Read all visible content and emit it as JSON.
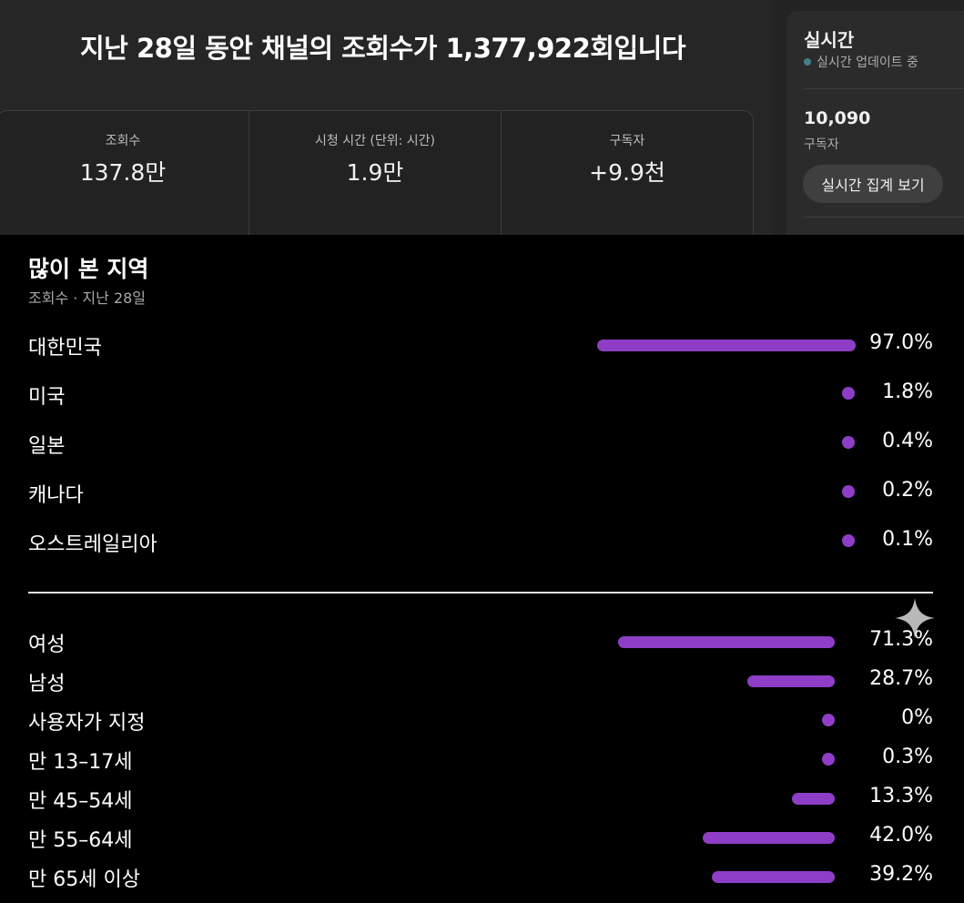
{
  "overview": {
    "headline": "지난 28일 동안 채널의 조회수가 1,377,922회입니다",
    "metrics": [
      {
        "label": "조회수",
        "value": "137.8만"
      },
      {
        "label": "시청 시간 (단위: 시간)",
        "value": "1.9만"
      },
      {
        "label": "구독자",
        "value": "+9.9천"
      }
    ]
  },
  "realtime": {
    "title": "실시간",
    "status": "실시간 업데이트 중",
    "subscriber_count": "10,090",
    "subscriber_label": "구독자",
    "button_label": "실시간 집계 보기"
  },
  "regions": {
    "title": "많이 본 지역",
    "subtitle": "조회수 · 지난 28일",
    "items": [
      {
        "name": "대한민국",
        "value": "97.0%",
        "pct": 97.0
      },
      {
        "name": "미국",
        "value": "1.8%",
        "pct": 1.8
      },
      {
        "name": "일본",
        "value": "0.4%",
        "pct": 0.4
      },
      {
        "name": "캐나다",
        "value": "0.2%",
        "pct": 0.2
      },
      {
        "name": "오스트레일리아",
        "value": "0.1%",
        "pct": 0.1
      }
    ]
  },
  "demographics": {
    "items": [
      {
        "name": "여성",
        "value": "71.3%",
        "pct": 71.3
      },
      {
        "name": "남성",
        "value": "28.7%",
        "pct": 28.7
      },
      {
        "name": "사용자가 지정",
        "value": "0%",
        "pct": 0
      },
      {
        "name": "만 13–17세",
        "value": "0.3%",
        "pct": 0.3
      },
      {
        "name": "만 45–54세",
        "value": "13.3%",
        "pct": 13.3
      },
      {
        "name": "만 55–64세",
        "value": "42.0%",
        "pct": 42.0
      },
      {
        "name": "만 65세 이상",
        "value": "39.2%",
        "pct": 39.2
      }
    ]
  },
  "colors": {
    "bar": "#8e3ec6",
    "live_dot": "#41808a"
  },
  "icons": {
    "live_indicator": "live-dot-icon",
    "watermark": "sparkle-icon"
  }
}
